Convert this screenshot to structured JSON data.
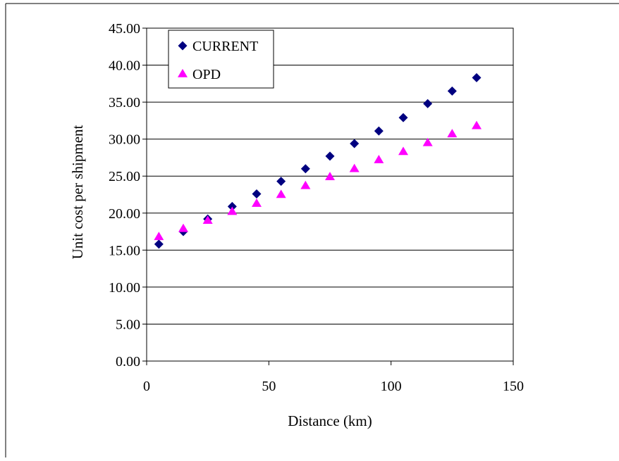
{
  "chart_data": {
    "type": "scatter",
    "title": "",
    "xlabel": "Distance (km)",
    "ylabel": "Unit cost per shipment",
    "xlim": [
      0,
      150
    ],
    "ylim": [
      0,
      45
    ],
    "x_ticks": [
      "0",
      "50",
      "100",
      "150"
    ],
    "y_ticks": [
      "0.00",
      "5.00",
      "10.00",
      "15.00",
      "20.00",
      "25.00",
      "30.00",
      "35.00",
      "40.00",
      "45.00"
    ],
    "grid": "horizontal",
    "legend_position": "top-left",
    "series": [
      {
        "name": "CURRENT",
        "marker": "diamond",
        "color": "#000080",
        "x": [
          5,
          15,
          25,
          35,
          45,
          55,
          65,
          75,
          85,
          95,
          105,
          115,
          125,
          135
        ],
        "y": [
          15.8,
          17.5,
          19.2,
          20.9,
          22.6,
          24.3,
          26.0,
          27.7,
          29.4,
          31.1,
          32.9,
          34.8,
          36.5,
          38.3
        ]
      },
      {
        "name": "OPD",
        "marker": "triangle",
        "color": "#FF00FF",
        "x": [
          5,
          15,
          25,
          35,
          45,
          55,
          65,
          75,
          85,
          95,
          105,
          115,
          125,
          135
        ],
        "y": [
          16.8,
          17.9,
          19.0,
          20.2,
          21.3,
          22.5,
          23.7,
          24.9,
          26.0,
          27.2,
          28.3,
          29.5,
          30.7,
          31.8
        ]
      }
    ]
  }
}
